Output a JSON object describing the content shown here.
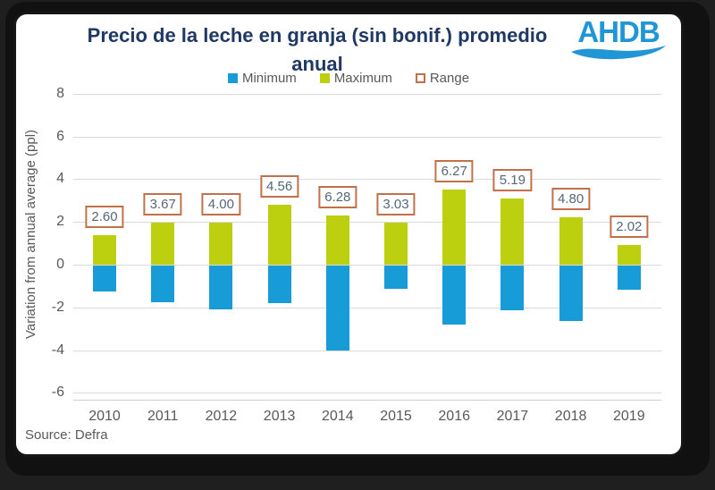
{
  "header": {
    "title_line1": "Precio de la leche en granja (sin bonif.) promedio",
    "title_line2": "anual",
    "logo_text": "AHDB",
    "logo_color": "#2196D6",
    "title_color": "#1F3864"
  },
  "legend": [
    {
      "label": "Minimum",
      "swatch": "filled",
      "color": "#189CD8"
    },
    {
      "label": "Maximum",
      "swatch": "filled",
      "color": "#BDD00F"
    },
    {
      "label": "Range",
      "swatch": "outline",
      "color": "#C0714A"
    }
  ],
  "chart_data": {
    "type": "bar",
    "title": "Precio de la leche en granja (sin bonif.) promedio anual",
    "categories": [
      "2010",
      "2011",
      "2012",
      "2013",
      "2014",
      "2015",
      "2016",
      "2017",
      "2018",
      "2019"
    ],
    "series": [
      {
        "name": "Minimum",
        "color": "#189CD8",
        "values": [
          -1.2,
          -1.72,
          -2.05,
          -1.76,
          -3.98,
          -1.08,
          -2.77,
          -2.09,
          -2.6,
          -1.12
        ]
      },
      {
        "name": "Maximum",
        "color": "#BDD00F",
        "values": [
          1.4,
          1.95,
          1.95,
          2.8,
          2.3,
          1.95,
          3.5,
          3.1,
          2.2,
          0.9
        ]
      }
    ],
    "range_labels": [
      "2.60",
      "3.67",
      "4.00",
      "4.56",
      "6.28",
      "3.03",
      "6.27",
      "5.19",
      "4.80",
      "2.02"
    ],
    "range_box_border_color": "#C0714A",
    "xlabel": "",
    "ylabel": "Variation from annual average (ppl)",
    "yticks": [
      8,
      6,
      4,
      2,
      0,
      -2,
      -4,
      -6
    ],
    "ylim": [
      -6.5,
      8.5
    ],
    "grid": true,
    "legend_position": "top"
  },
  "footer": {
    "source": "Source: Defra"
  }
}
